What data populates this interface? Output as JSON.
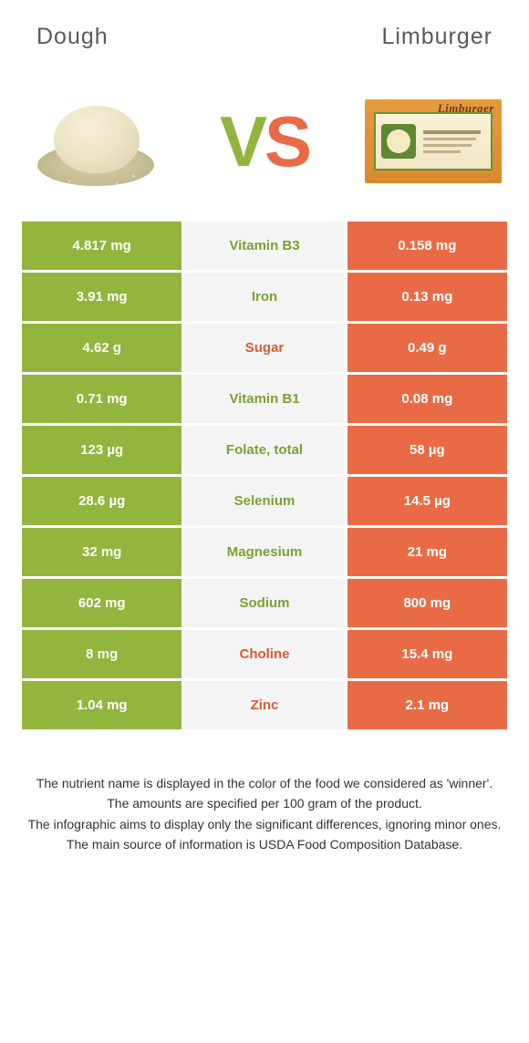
{
  "header": {
    "left_title": "Dough",
    "right_title": "Limburger"
  },
  "vs": {
    "v": "V",
    "s": "S"
  },
  "limburger_brand": "Limburger",
  "colors": {
    "green": "#91b53d",
    "orange": "#e96b46",
    "mid_bg": "#f4f4f4",
    "text_green": "#7ca031",
    "text_orange": "#d85a36"
  },
  "rows": [
    {
      "left": "4.817 mg",
      "label": "Vitamin B3",
      "right": "0.158 mg",
      "winner": "green"
    },
    {
      "left": "3.91 mg",
      "label": "Iron",
      "right": "0.13 mg",
      "winner": "green"
    },
    {
      "left": "4.62 g",
      "label": "Sugar",
      "right": "0.49 g",
      "winner": "orange"
    },
    {
      "left": "0.71 mg",
      "label": "Vitamin B1",
      "right": "0.08 mg",
      "winner": "green"
    },
    {
      "left": "123 µg",
      "label": "Folate, total",
      "right": "58 µg",
      "winner": "green"
    },
    {
      "left": "28.6 µg",
      "label": "Selenium",
      "right": "14.5 µg",
      "winner": "green"
    },
    {
      "left": "32 mg",
      "label": "Magnesium",
      "right": "21 mg",
      "winner": "green"
    },
    {
      "left": "602 mg",
      "label": "Sodium",
      "right": "800 mg",
      "winner": "green"
    },
    {
      "left": "8 mg",
      "label": "Choline",
      "right": "15.4 mg",
      "winner": "orange"
    },
    {
      "left": "1.04 mg",
      "label": "Zinc",
      "right": "2.1 mg",
      "winner": "orange"
    }
  ],
  "footnotes": [
    "The nutrient name is displayed in the color of the food we considered as 'winner'.",
    "The amounts are specified per 100 gram of the product.",
    "The infographic aims to display only the significant differences, ignoring minor ones.",
    "The main source of information is USDA Food Composition Database."
  ]
}
